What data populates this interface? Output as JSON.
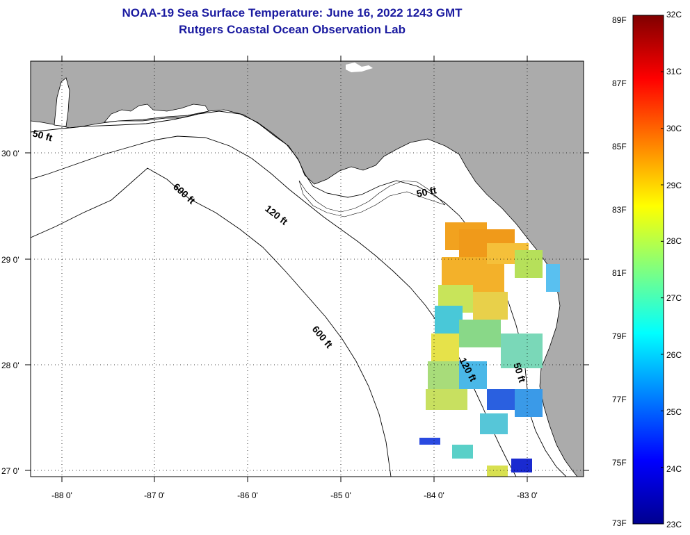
{
  "header": {
    "title_line1": "NOAA-19 Sea Surface Temperature:  June 16, 2022 1243 GMT",
    "title_line2": "Rutgers Coastal Ocean Observation Lab"
  },
  "map": {
    "lat_labels": [
      "30 0'",
      "29 0'",
      "28 0'",
      "27 0'"
    ],
    "lon_labels": [
      "-88 0'",
      "-87 0'",
      "-86 0'",
      "-85 0'",
      "-84 0'",
      "-83 0'"
    ],
    "contour_labels": [
      "50 ft",
      "600 ft",
      "120 ft",
      "50 ft",
      "600 ft",
      "120 ft",
      "50 ft"
    ],
    "land_color": "#ababab",
    "water_color": "#ffffff"
  },
  "colorbar": {
    "fahrenheit_labels": [
      "89F",
      "87F",
      "85F",
      "83F",
      "81F",
      "79F",
      "77F",
      "75F",
      "73F"
    ],
    "celsius_labels": [
      "32C",
      "31C",
      "30C",
      "29C",
      "28C",
      "27C",
      "26C",
      "25C",
      "24C",
      "23C"
    ],
    "min_c": 23,
    "max_c": 32
  }
}
